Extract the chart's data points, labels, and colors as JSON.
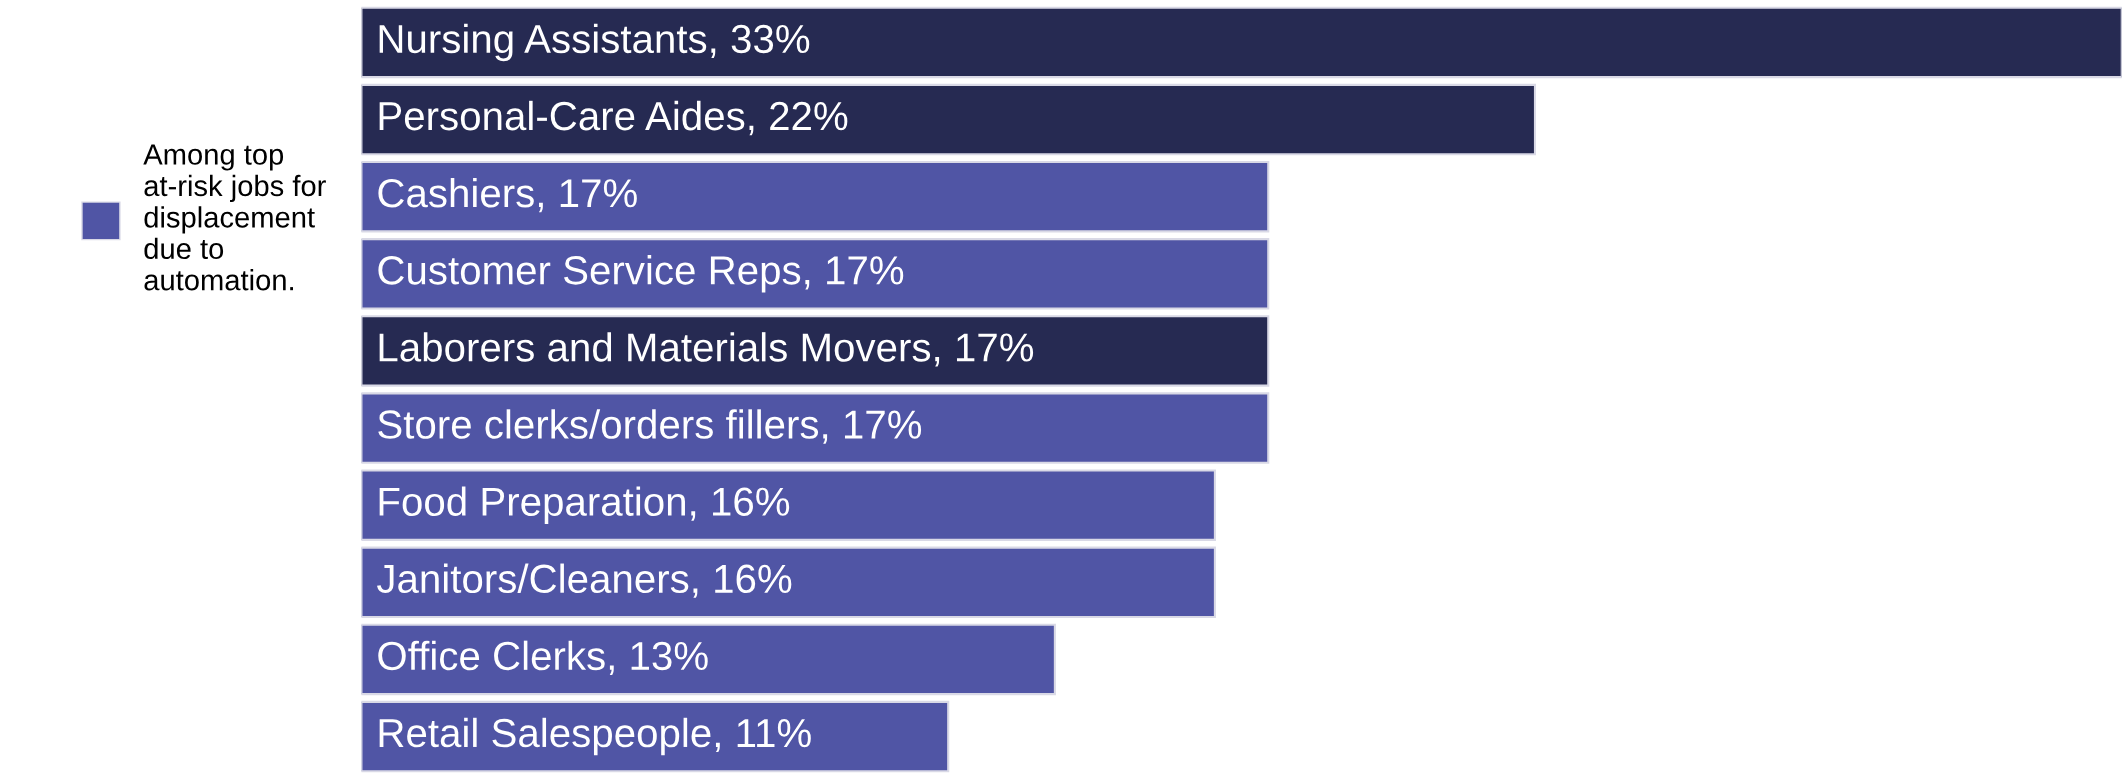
{
  "chart_data": {
    "type": "bar",
    "orientation": "horizontal",
    "categories": [
      null,
      null,
      null,
      null,
      null,
      null,
      null,
      null,
      null,
      null
    ],
    "xlim": [
      0,
      33
    ],
    "tick_labels": false,
    "grid": false,
    "legend": "left",
    "series": [
      {
        "name": "Among top\nat-risk jobs for\ndisplacement\ndue to\nautomation.",
        "color": "#5055a5",
        "colors": [
          "#262a52",
          "#262a52",
          "#5055a5",
          "#5055a5",
          "#262a52",
          "#5055a5",
          "#5055a5",
          "#5055a5",
          "#5055a5",
          "#5055a5"
        ],
        "values": [
          33,
          22,
          17,
          17,
          17,
          17,
          16,
          16,
          13,
          11
        ],
        "value_labels": [
          "Nursing Assistants, 33%",
          "Personal-Care Aides, 22%",
          "Cashiers, 17%",
          "Customer Service Reps, 17%",
          "Laborers and Materials Movers, 17%",
          "Store clerks/orders fillers, 17%",
          "Food Preparation, 16%",
          "Janitors/Cleaners, 16%",
          "Office Clerks, 13%",
          "Retail Salespeople, 11%"
        ]
      }
    ]
  }
}
